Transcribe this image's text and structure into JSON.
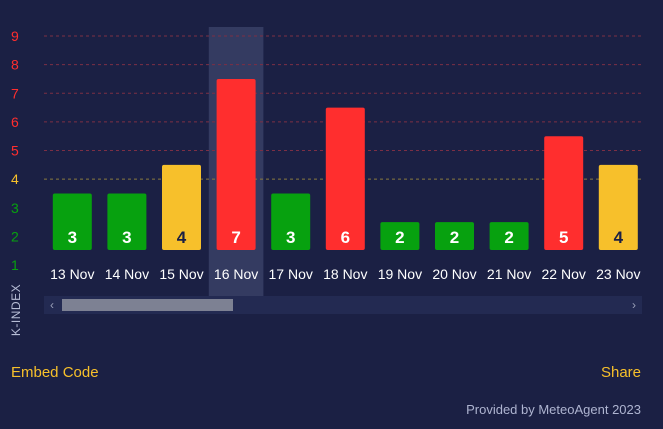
{
  "chart_data": {
    "type": "bar",
    "categories": [
      "13 Nov",
      "14 Nov",
      "15 Nov",
      "16 Nov",
      "17 Nov",
      "18 Nov",
      "19 Nov",
      "20 Nov",
      "21 Nov",
      "22 Nov",
      "23 Nov"
    ],
    "values": [
      3,
      3,
      4,
      7,
      3,
      6,
      2,
      2,
      2,
      5,
      4
    ],
    "value_labels": [
      "3",
      "3",
      "4",
      "7",
      "3",
      "6",
      "2",
      "2",
      "2",
      "5",
      "4"
    ],
    "ylabel": "K-INDEX",
    "ylim": [
      1,
      9
    ],
    "yticks": [
      "1",
      "2",
      "3",
      "4",
      "5",
      "6",
      "7",
      "8",
      "9"
    ],
    "highlighted_category": "16 Nov",
    "grid": true,
    "color_scale": {
      "low": "#07a10f",
      "moderate": "#f7c02b",
      "storm": "#ff2e2e"
    }
  },
  "footer": {
    "embed_label": "Embed Code",
    "share_label": "Share",
    "credits": "Provided by MeteoAgent 2023"
  },
  "scrollbar": {
    "left_arrow": "‹",
    "right_arrow": "›"
  }
}
